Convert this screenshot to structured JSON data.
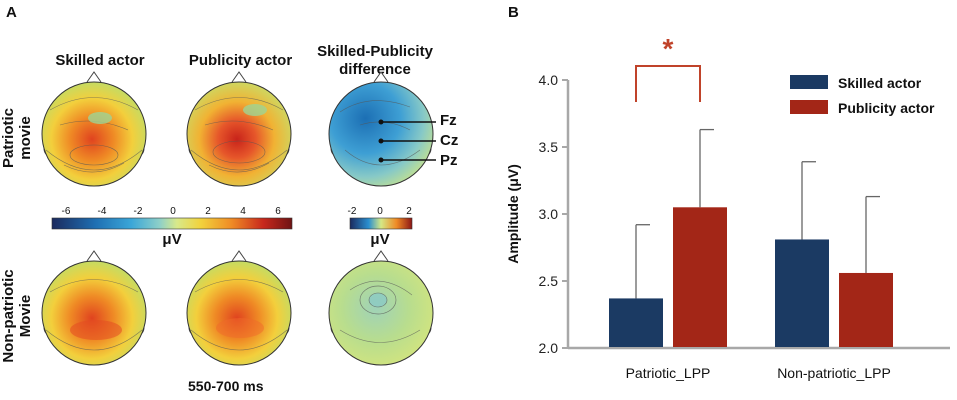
{
  "panelA": {
    "letter": "A",
    "col_titles": [
      "Skilled actor",
      "Publicity actor",
      "Skilled-Publicity\ndifference"
    ],
    "row_labels": [
      "Patriotic\nmovie",
      "Non-patriotic\nMovie"
    ],
    "scale_main": {
      "ticks": [
        "-6",
        "-4",
        "-2",
        "0",
        "2",
        "4",
        "6"
      ],
      "unit": "μV"
    },
    "scale_diff": {
      "ticks": [
        "-2",
        "0",
        "2"
      ],
      "unit": "μV"
    },
    "electrodes": [
      "Fz",
      "Cz",
      "Pz"
    ],
    "time_window": "550-700 ms"
  },
  "panelB": {
    "letter": "B"
  },
  "chart_data": {
    "type": "bar",
    "categories": [
      "Patriotic_LPP",
      "Non-patriotic_LPP"
    ],
    "series": [
      {
        "name": "Skilled actor",
        "values": [
          2.37,
          2.81
        ],
        "errors": [
          0.55,
          0.58
        ],
        "color": "#1b3a63"
      },
      {
        "name": "Publicity actor",
        "values": [
          3.05,
          2.56
        ],
        "errors": [
          0.58,
          0.57
        ],
        "color": "#a32617"
      }
    ],
    "ylabel": "Amplitude (μV)",
    "ylim": [
      2.0,
      4.0
    ],
    "yticks": [
      "2.0",
      "2.5",
      "3.0",
      "3.5",
      "4.0"
    ],
    "significance": {
      "category": "Patriotic_LPP",
      "marker": "*",
      "color": "#c0432a"
    },
    "legend_position": "top-right"
  }
}
